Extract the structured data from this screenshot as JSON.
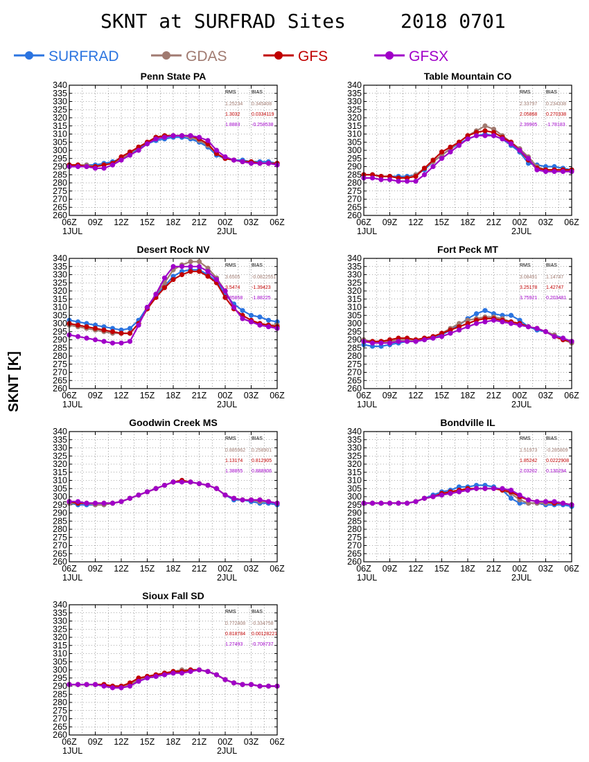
{
  "title_left": "SKNT at SURFRAD Sites",
  "title_right": "2018 0701",
  "colors": {
    "SURFRAD": "#2b74e0",
    "GDAS": "#a07a70",
    "GFS": "#c00000",
    "GFSX": "#a000c8"
  },
  "chart_data": {
    "type": "line",
    "ylabel": "SKNT [K]",
    "ylim": [
      260,
      340
    ],
    "yticks": [
      260,
      265,
      270,
      275,
      280,
      285,
      290,
      295,
      300,
      305,
      310,
      315,
      320,
      325,
      330,
      335,
      340
    ],
    "xticks": [
      "06Z",
      "09Z",
      "12Z",
      "15Z",
      "18Z",
      "21Z",
      "00Z",
      "03Z",
      "06Z"
    ],
    "xdates": [
      "1JUL",
      "2JUL"
    ],
    "x_hours": [
      6,
      7,
      8,
      9,
      10,
      11,
      12,
      13,
      14,
      15,
      16,
      17,
      18,
      19,
      20,
      21,
      22,
      23,
      24,
      25,
      26,
      27,
      28,
      29,
      30
    ],
    "grid": true,
    "legend": {
      "position": "top",
      "entries": [
        "SURFRAD",
        "GDAS",
        "GFS",
        "GFSX"
      ]
    },
    "stat_headers": [
      "RMS",
      "BIAS"
    ],
    "panels": [
      {
        "title": "Penn State PA",
        "stats": [
          [
            "GDAS",
            "1.25234",
            "0.345408"
          ],
          [
            "GFS",
            "1.3032",
            "0.0334119"
          ],
          [
            "GFSX",
            "1.8883",
            "-0.258538"
          ]
        ],
        "series": [
          {
            "name": "SURFRAD",
            "values": [
              291,
              291,
              291,
              291,
              292,
              293,
              295,
              298,
              301,
              304,
              306,
              307,
              308,
              308,
              307,
              305,
              302,
              297,
              295,
              294,
              294,
              293,
              293,
              293,
              292
            ]
          },
          {
            "name": "GDAS",
            "values": [
              291,
              291,
              291,
              290,
              291,
              292,
              295,
              298,
              302,
              305,
              308,
              309,
              309,
              309,
              308,
              306,
              303,
              298,
              295,
              294,
              293,
              293,
              292,
              292,
              292
            ]
          },
          {
            "name": "GFS",
            "values": [
              291,
              291,
              290,
              290,
              291,
              292,
              296,
              299,
              302,
              305,
              308,
              309,
              309,
              309,
              309,
              307,
              304,
              298,
              295,
              294,
              293,
              293,
              292,
              292,
              292
            ]
          },
          {
            "name": "GFSX",
            "values": [
              290,
              290,
              290,
              289,
              289,
              291,
              294,
              297,
              300,
              304,
              307,
              308,
              309,
              309,
              309,
              308,
              306,
              300,
              296,
              294,
              293,
              292,
              292,
              292,
              291
            ]
          }
        ]
      },
      {
        "title": "Table Mountain CO",
        "stats": [
          [
            "GDAS",
            "2.33797",
            "0.234338"
          ],
          [
            "GFS",
            "2.05868",
            "0.270338"
          ],
          [
            "GFSX",
            "2.39905",
            "-1.78183"
          ]
        ],
        "series": [
          {
            "name": "SURFRAD",
            "values": [
              285,
              285,
              284,
              284,
              284,
              284,
              285,
              288,
              293,
              297,
              301,
              304,
              307,
              309,
              310,
              309,
              307,
              303,
              299,
              292,
              291,
              290,
              290,
              289,
              288
            ]
          },
          {
            "name": "GDAS",
            "values": [
              285,
              285,
              284,
              284,
              283,
              283,
              285,
              289,
              293,
              297,
              301,
              305,
              309,
              312,
              315,
              313,
              309,
              305,
              301,
              296,
              290,
              288,
              288,
              288,
              287
            ]
          },
          {
            "name": "GFS",
            "values": [
              285,
              285,
              284,
              284,
              283,
              283,
              284,
              289,
              294,
              299,
              302,
              305,
              309,
              311,
              312,
              311,
              308,
              305,
              300,
              294,
              289,
              288,
              288,
              288,
              288
            ]
          },
          {
            "name": "GFSX",
            "values": [
              283,
              283,
              282,
              282,
              281,
              281,
              281,
              285,
              290,
              295,
              299,
              303,
              307,
              309,
              309,
              309,
              307,
              304,
              300,
              295,
              288,
              287,
              287,
              287,
              287
            ]
          }
        ]
      },
      {
        "title": "Desert Rock NV",
        "stats": [
          [
            "GDAS",
            "3.6505",
            "-0.0822551"
          ],
          [
            "GFS",
            "3.5474",
            "-1.39423"
          ],
          [
            "GFSX",
            "5.85858",
            "-1.88225"
          ]
        ],
        "series": [
          {
            "name": "SURFRAD",
            "values": [
              302,
              301,
              300,
              299,
              298,
              297,
              296,
              297,
              302,
              310,
              317,
              323,
              329,
              332,
              333,
              333,
              330,
              326,
              318,
              312,
              308,
              305,
              304,
              302,
              301
            ]
          },
          {
            "name": "GDAS",
            "values": [
              299,
              298,
              297,
              296,
              295,
              294,
              294,
              294,
              300,
              309,
              318,
              325,
              333,
              336,
              338,
              338,
              334,
              328,
              320,
              310,
              303,
              301,
              300,
              299,
              299
            ]
          },
          {
            "name": "GFS",
            "values": [
              300,
              299,
              298,
              297,
              296,
              295,
              294,
              294,
              300,
              309,
              316,
              322,
              327,
              330,
              332,
              332,
              329,
              325,
              316,
              309,
              305,
              302,
              300,
              299,
              298
            ]
          },
          {
            "name": "GFSX",
            "values": [
              293,
              292,
              291,
              290,
              289,
              288,
              288,
              289,
              299,
              310,
              318,
              328,
              335,
              335,
              335,
              335,
              332,
              327,
              320,
              310,
              303,
              301,
              299,
              298,
              297
            ]
          }
        ]
      },
      {
        "title": "Fort Peck MT",
        "stats": [
          [
            "GDAS",
            "3.08491",
            "1.14747"
          ],
          [
            "GFS",
            "3.25178",
            "1.42747"
          ],
          [
            "GFSX",
            "3.75921",
            "0.203481"
          ]
        ],
        "series": [
          {
            "name": "SURFRAD",
            "values": [
              287,
              286,
              286,
              287,
              288,
              289,
              289,
              290,
              291,
              293,
              296,
              299,
              303,
              306,
              308,
              306,
              305,
              305,
              302,
              298,
              296,
              295,
              293,
              291,
              289
            ]
          },
          {
            "name": "GDAS",
            "values": [
              290,
              289,
              289,
              289,
              290,
              290,
              290,
              291,
              292,
              294,
              297,
              300,
              302,
              303,
              304,
              304,
              303,
              301,
              300,
              298,
              297,
              295,
              293,
              290,
              288
            ]
          },
          {
            "name": "GFS",
            "values": [
              289,
              289,
              289,
              290,
              291,
              291,
              290,
              291,
              292,
              294,
              296,
              298,
              300,
              302,
              303,
              303,
              302,
              301,
              300,
              298,
              297,
              295,
              292,
              290,
              289
            ]
          },
          {
            "name": "GFSX",
            "values": [
              289,
              288,
              288,
              288,
              289,
              289,
              289,
              290,
              291,
              292,
              294,
              296,
              298,
              300,
              301,
              302,
              301,
              300,
              299,
              298,
              297,
              295,
              292,
              291,
              289
            ]
          }
        ]
      },
      {
        "title": "Goodwin Creek MS",
        "stats": [
          [
            "GDAS",
            "0.885962",
            "0.258901"
          ],
          [
            "GFS",
            "1.13174",
            "0.812905"
          ],
          [
            "GFSX",
            "1.38855",
            "0.888906"
          ]
        ],
        "series": [
          {
            "name": "SURFRAD",
            "values": [
              296,
              295,
              295,
              295,
              295,
              296,
              297,
              299,
              301,
              303,
              305,
              307,
              309,
              310,
              309,
              308,
              307,
              305,
              301,
              298,
              298,
              297,
              296,
              296,
              295
            ]
          },
          {
            "name": "GDAS",
            "values": [
              296,
              296,
              296,
              295,
              295,
              296,
              297,
              299,
              301,
              303,
              305,
              307,
              309,
              310,
              309,
              308,
              307,
              305,
              301,
              299,
              298,
              298,
              297,
              297,
              296
            ]
          },
          {
            "name": "GFS",
            "values": [
              297,
              296,
              296,
              296,
              296,
              296,
              297,
              299,
              301,
              303,
              305,
              307,
              309,
              310,
              309,
              308,
              307,
              305,
              301,
              299,
              298,
              298,
              298,
              297,
              296
            ]
          },
          {
            "name": "GFSX",
            "values": [
              297,
              297,
              296,
              296,
              296,
              296,
              297,
              299,
              301,
              303,
              305,
              307,
              309,
              309,
              309,
              308,
              307,
              305,
              301,
              299,
              298,
              298,
              298,
              297,
              296
            ]
          }
        ]
      },
      {
        "title": "Bondville IL",
        "stats": [
          [
            "GDAS",
            "1.51973",
            "-0.285809"
          ],
          [
            "GFS",
            "1.85242",
            "0.0222908"
          ],
          [
            "GFSX",
            "2.03202",
            "0.130294"
          ]
        ],
        "series": [
          {
            "name": "SURFRAD",
            "values": [
              296,
              296,
              296,
              296,
              296,
              296,
              297,
              299,
              301,
              303,
              304,
              306,
              306,
              307,
              307,
              306,
              304,
              299,
              296,
              296,
              296,
              295,
              295,
              295,
              294
            ]
          },
          {
            "name": "GDAS",
            "values": [
              296,
              296,
              296,
              296,
              296,
              296,
              297,
              299,
              300,
              301,
              302,
              303,
              304,
              305,
              305,
              305,
              304,
              302,
              298,
              296,
              296,
              296,
              296,
              296,
              295
            ]
          },
          {
            "name": "GFS",
            "values": [
              296,
              296,
              296,
              296,
              296,
              296,
              297,
              299,
              300,
              302,
              303,
              304,
              305,
              305,
              305,
              305,
              304,
              303,
              300,
              298,
              297,
              297,
              296,
              296,
              295
            ]
          },
          {
            "name": "GFSX",
            "values": [
              296,
              296,
              296,
              296,
              296,
              296,
              297,
              299,
              300,
              301,
              302,
              303,
              304,
              305,
              305,
              305,
              305,
              304,
              301,
              298,
              297,
              297,
              297,
              296,
              295
            ]
          }
        ]
      },
      {
        "title": "Sioux Fall SD",
        "stats": [
          [
            "GDAS",
            "0.772408",
            "-0.334758"
          ],
          [
            "GFS",
            "0.818784",
            "0.00128221"
          ],
          [
            "GFSX",
            "1.27493",
            "-0.708737"
          ]
        ],
        "series": [
          {
            "name": "SURFRAD",
            "values": [
              291,
              291,
              291,
              291,
              291,
              290,
              290,
              291,
              293,
              295,
              296,
              297,
              298,
              299,
              300,
              300,
              299,
              297,
              294,
              292,
              291,
              291,
              290,
              290,
              290
            ]
          },
          {
            "name": "GDAS",
            "values": [
              291,
              291,
              291,
              291,
              291,
              290,
              290,
              291,
              294,
              296,
              297,
              298,
              299,
              300,
              300,
              300,
              299,
              297,
              294,
              292,
              291,
              291,
              290,
              290,
              290
            ]
          },
          {
            "name": "GFS",
            "values": [
              291,
              291,
              291,
              291,
              291,
              290,
              290,
              292,
              295,
              296,
              297,
              298,
              299,
              299,
              300,
              300,
              299,
              297,
              294,
              292,
              291,
              291,
              290,
              290,
              290
            ]
          },
          {
            "name": "GFSX",
            "values": [
              291,
              291,
              291,
              291,
              290,
              289,
              289,
              290,
              293,
              295,
              296,
              297,
              298,
              298,
              299,
              300,
              299,
              297,
              294,
              292,
              291,
              291,
              290,
              290,
              290
            ]
          }
        ]
      }
    ]
  }
}
